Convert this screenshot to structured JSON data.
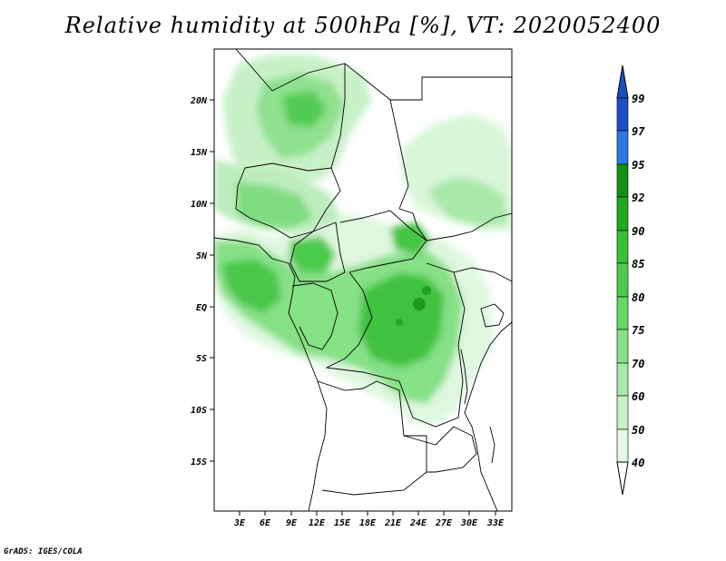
{
  "title": "Relative humidity at 500hPa [%], VT: 2020052400",
  "credit": "GrADS: IGES/COLA",
  "map": {
    "lat_labels": [
      "20N",
      "15N",
      "10N",
      "5N",
      "EQ",
      "5S",
      "10S",
      "15S"
    ],
    "lon_labels": [
      "3E",
      "6E",
      "9E",
      "12E",
      "15E",
      "18E",
      "21E",
      "24E",
      "27E",
      "30E",
      "33E"
    ]
  },
  "colorbar": {
    "levels": [
      "99",
      "97",
      "95",
      "92",
      "90",
      "85",
      "80",
      "75",
      "70",
      "60",
      "50",
      "40"
    ],
    "colors": [
      "#1a4fc7",
      "#2f78e0",
      "#4fa0f0",
      "#129012",
      "#20a820",
      "#38bf38",
      "#56d656",
      "#7ee07e",
      "#a2eaa2",
      "#c4f2c4",
      "#dff9df",
      "#f2fdf2"
    ]
  }
}
